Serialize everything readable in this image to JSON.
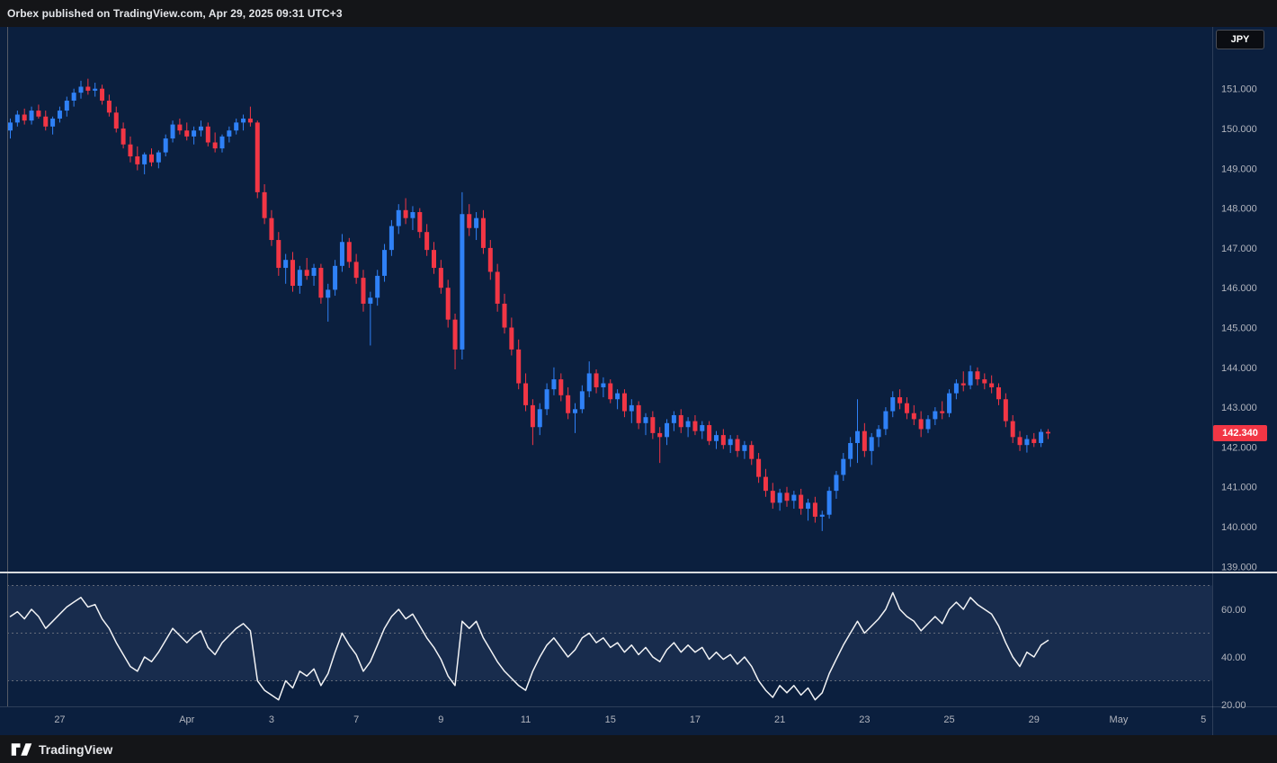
{
  "header": {
    "published_line": "Orbex published on TradingView.com, Apr 29, 2025 09:31 UTC+3"
  },
  "symbol_badge": "JPY",
  "price_label": {
    "value": "142.340",
    "color": "#f23645"
  },
  "footer": {
    "brand": "TradingView"
  },
  "chart_data": {
    "type": "candlestick",
    "symbol": "JPY",
    "interval_note": "4h candles with RSI sub-pane",
    "ohlc_order": [
      "open",
      "high",
      "low",
      "close"
    ],
    "last_price": 142.34,
    "price_axis": {
      "ticks": [
        151,
        150,
        149,
        148,
        147,
        146,
        145,
        144,
        143,
        142,
        141,
        140,
        139
      ],
      "decimals": 3
    },
    "rsi_axis": {
      "ticks": [
        60,
        40,
        20
      ],
      "levels": [
        70,
        50,
        30
      ],
      "decimals": 2
    },
    "time_labels": [
      {
        "label": "27",
        "i": 7
      },
      {
        "label": "Apr",
        "i": 25
      },
      {
        "label": "3",
        "i": 37
      },
      {
        "label": "7",
        "i": 49
      },
      {
        "label": "9",
        "i": 61
      },
      {
        "label": "11",
        "i": 73
      },
      {
        "label": "15",
        "i": 85
      },
      {
        "label": "17",
        "i": 97
      },
      {
        "label": "21",
        "i": 109
      },
      {
        "label": "23",
        "i": 121
      },
      {
        "label": "25",
        "i": 133
      },
      {
        "label": "29",
        "i": 145
      },
      {
        "label": "May",
        "i": 157
      },
      {
        "label": "5",
        "i": 169
      }
    ],
    "colors": {
      "background": "#0b1f3e",
      "panel": "#141518",
      "up": "#2f81f7",
      "down": "#f23645",
      "rsi_line": "#f2f3f5",
      "rsi_band": "rgba(148,170,220,0.10)",
      "dashed": "#787b86",
      "separator": "#d8dade",
      "axis_text": "#b2b5be",
      "border": "#565b66"
    },
    "candles": [
      [
        149.95,
        150.25,
        149.75,
        150.15
      ],
      [
        150.15,
        150.45,
        150.05,
        150.35
      ],
      [
        150.35,
        150.5,
        150.1,
        150.2
      ],
      [
        150.2,
        150.55,
        150.1,
        150.45
      ],
      [
        150.45,
        150.6,
        150.25,
        150.3
      ],
      [
        150.3,
        150.45,
        149.95,
        150.05
      ],
      [
        150.05,
        150.3,
        149.85,
        150.25
      ],
      [
        150.25,
        150.55,
        150.15,
        150.45
      ],
      [
        150.45,
        150.8,
        150.3,
        150.7
      ],
      [
        150.7,
        151.0,
        150.55,
        150.9
      ],
      [
        150.9,
        151.2,
        150.75,
        151.05
      ],
      [
        151.05,
        151.25,
        150.85,
        150.95
      ],
      [
        150.95,
        151.15,
        150.8,
        151.0
      ],
      [
        151.0,
        151.1,
        150.6,
        150.7
      ],
      [
        150.7,
        150.85,
        150.3,
        150.4
      ],
      [
        150.4,
        150.55,
        149.9,
        150.0
      ],
      [
        150.0,
        150.15,
        149.5,
        149.6
      ],
      [
        149.6,
        149.8,
        149.15,
        149.3
      ],
      [
        149.3,
        149.55,
        148.95,
        149.1
      ],
      [
        149.1,
        149.4,
        148.85,
        149.35
      ],
      [
        149.35,
        149.5,
        149.05,
        149.15
      ],
      [
        149.15,
        149.45,
        149.0,
        149.4
      ],
      [
        149.4,
        149.85,
        149.3,
        149.75
      ],
      [
        149.75,
        150.2,
        149.65,
        150.1
      ],
      [
        150.1,
        150.25,
        149.85,
        149.95
      ],
      [
        149.95,
        150.15,
        149.7,
        149.8
      ],
      [
        149.8,
        150.05,
        149.6,
        149.95
      ],
      [
        149.95,
        150.2,
        149.8,
        150.05
      ],
      [
        150.05,
        150.15,
        149.55,
        149.65
      ],
      [
        149.65,
        149.9,
        149.4,
        149.5
      ],
      [
        149.5,
        149.85,
        149.4,
        149.8
      ],
      [
        149.8,
        150.05,
        149.65,
        149.95
      ],
      [
        149.95,
        150.25,
        149.85,
        150.15
      ],
      [
        150.15,
        150.35,
        149.95,
        150.25
      ],
      [
        150.25,
        150.55,
        150.05,
        150.15
      ],
      [
        150.15,
        150.2,
        148.25,
        148.4
      ],
      [
        148.4,
        148.6,
        147.6,
        147.75
      ],
      [
        147.75,
        147.95,
        147.05,
        147.2
      ],
      [
        147.2,
        147.4,
        146.3,
        146.5
      ],
      [
        146.5,
        146.85,
        146.1,
        146.7
      ],
      [
        146.7,
        146.9,
        145.9,
        146.05
      ],
      [
        146.05,
        146.55,
        145.85,
        146.45
      ],
      [
        146.45,
        146.75,
        146.2,
        146.3
      ],
      [
        146.3,
        146.6,
        146.05,
        146.5
      ],
      [
        146.5,
        146.6,
        145.6,
        145.75
      ],
      [
        145.75,
        146.1,
        145.15,
        145.95
      ],
      [
        145.95,
        146.7,
        145.8,
        146.55
      ],
      [
        146.55,
        147.35,
        146.4,
        147.15
      ],
      [
        147.15,
        147.25,
        146.5,
        146.65
      ],
      [
        146.65,
        146.85,
        146.1,
        146.25
      ],
      [
        146.25,
        146.45,
        145.4,
        145.6
      ],
      [
        145.6,
        145.9,
        144.55,
        145.75
      ],
      [
        145.75,
        146.45,
        145.55,
        146.3
      ],
      [
        146.3,
        147.1,
        146.15,
        146.95
      ],
      [
        146.95,
        147.7,
        146.8,
        147.55
      ],
      [
        147.55,
        148.1,
        147.35,
        147.95
      ],
      [
        147.95,
        148.25,
        147.6,
        147.75
      ],
      [
        147.75,
        148.05,
        147.45,
        147.9
      ],
      [
        147.9,
        148.0,
        147.25,
        147.4
      ],
      [
        147.4,
        147.6,
        146.8,
        146.95
      ],
      [
        146.95,
        147.15,
        146.35,
        146.5
      ],
      [
        146.5,
        146.7,
        145.85,
        146.0
      ],
      [
        146.0,
        146.2,
        145.0,
        145.2
      ],
      [
        145.2,
        145.35,
        143.95,
        144.45
      ],
      [
        144.45,
        148.4,
        144.2,
        147.85
      ],
      [
        147.85,
        148.1,
        147.3,
        147.5
      ],
      [
        147.5,
        147.9,
        147.2,
        147.75
      ],
      [
        147.75,
        147.95,
        146.85,
        147.0
      ],
      [
        147.0,
        147.2,
        146.2,
        146.4
      ],
      [
        146.4,
        146.6,
        145.4,
        145.6
      ],
      [
        145.6,
        145.85,
        144.85,
        145.0
      ],
      [
        145.0,
        145.25,
        144.3,
        144.45
      ],
      [
        144.45,
        144.7,
        143.45,
        143.6
      ],
      [
        143.6,
        143.85,
        142.9,
        143.05
      ],
      [
        143.05,
        143.2,
        142.05,
        142.5
      ],
      [
        142.5,
        143.1,
        142.3,
        142.95
      ],
      [
        142.95,
        143.6,
        142.8,
        143.45
      ],
      [
        143.45,
        144.0,
        143.3,
        143.7
      ],
      [
        143.7,
        143.85,
        143.15,
        143.3
      ],
      [
        143.3,
        143.5,
        142.7,
        142.85
      ],
      [
        142.85,
        143.1,
        142.35,
        142.95
      ],
      [
        142.95,
        143.55,
        142.85,
        143.4
      ],
      [
        143.4,
        144.15,
        143.25,
        143.85
      ],
      [
        143.85,
        143.95,
        143.35,
        143.5
      ],
      [
        143.5,
        143.75,
        143.25,
        143.6
      ],
      [
        143.6,
        143.7,
        143.1,
        143.2
      ],
      [
        143.2,
        143.45,
        142.95,
        143.35
      ],
      [
        143.35,
        143.45,
        142.75,
        142.9
      ],
      [
        142.9,
        143.2,
        142.6,
        143.05
      ],
      [
        143.05,
        143.15,
        142.45,
        142.6
      ],
      [
        142.6,
        142.85,
        142.3,
        142.75
      ],
      [
        142.75,
        142.9,
        142.2,
        142.35
      ],
      [
        142.35,
        142.5,
        141.6,
        142.25
      ],
      [
        142.25,
        142.7,
        142.05,
        142.6
      ],
      [
        142.6,
        142.9,
        142.4,
        142.8
      ],
      [
        142.8,
        142.95,
        142.35,
        142.5
      ],
      [
        142.5,
        142.75,
        142.25,
        142.65
      ],
      [
        142.65,
        142.8,
        142.3,
        142.4
      ],
      [
        142.4,
        142.65,
        142.2,
        142.55
      ],
      [
        142.55,
        142.65,
        142.05,
        142.15
      ],
      [
        142.15,
        142.4,
        141.95,
        142.3
      ],
      [
        142.3,
        142.45,
        141.95,
        142.05
      ],
      [
        142.05,
        142.3,
        141.85,
        142.2
      ],
      [
        142.2,
        142.3,
        141.75,
        141.9
      ],
      [
        141.9,
        142.15,
        141.7,
        142.05
      ],
      [
        142.05,
        142.15,
        141.55,
        141.7
      ],
      [
        141.7,
        141.85,
        141.1,
        141.25
      ],
      [
        141.25,
        141.45,
        140.75,
        140.9
      ],
      [
        140.9,
        141.1,
        140.45,
        140.6
      ],
      [
        140.6,
        140.95,
        140.4,
        140.85
      ],
      [
        140.85,
        141.0,
        140.5,
        140.65
      ],
      [
        140.65,
        140.9,
        140.45,
        140.8
      ],
      [
        140.8,
        140.95,
        140.3,
        140.45
      ],
      [
        140.45,
        140.7,
        140.15,
        140.6
      ],
      [
        140.6,
        140.75,
        140.1,
        140.25
      ],
      [
        140.25,
        140.4,
        139.89,
        140.3
      ],
      [
        140.3,
        141.0,
        140.2,
        140.9
      ],
      [
        140.9,
        141.4,
        140.7,
        141.3
      ],
      [
        141.3,
        141.85,
        141.15,
        141.7
      ],
      [
        141.7,
        142.25,
        141.5,
        142.1
      ],
      [
        142.1,
        143.2,
        141.6,
        142.4
      ],
      [
        142.4,
        142.6,
        141.75,
        141.9
      ],
      [
        141.9,
        142.35,
        141.55,
        142.25
      ],
      [
        142.25,
        142.55,
        142.0,
        142.45
      ],
      [
        142.45,
        143.0,
        142.3,
        142.9
      ],
      [
        142.9,
        143.4,
        142.75,
        143.25
      ],
      [
        143.25,
        143.45,
        142.95,
        143.1
      ],
      [
        143.1,
        143.25,
        142.7,
        142.85
      ],
      [
        142.85,
        143.05,
        142.55,
        142.7
      ],
      [
        142.7,
        142.9,
        142.25,
        142.45
      ],
      [
        142.45,
        142.8,
        142.35,
        142.7
      ],
      [
        142.7,
        143.0,
        142.55,
        142.9
      ],
      [
        142.9,
        143.15,
        142.7,
        142.85
      ],
      [
        142.85,
        143.45,
        142.75,
        143.35
      ],
      [
        143.35,
        143.7,
        143.2,
        143.6
      ],
      [
        143.6,
        143.9,
        143.4,
        143.55
      ],
      [
        143.55,
        144.05,
        143.45,
        143.9
      ],
      [
        143.9,
        144.0,
        143.55,
        143.7
      ],
      [
        143.7,
        143.85,
        143.45,
        143.6
      ],
      [
        143.6,
        143.8,
        143.35,
        143.5
      ],
      [
        143.5,
        143.6,
        143.05,
        143.2
      ],
      [
        143.2,
        143.35,
        142.5,
        142.65
      ],
      [
        142.65,
        142.8,
        142.1,
        142.25
      ],
      [
        142.25,
        142.4,
        141.9,
        142.05
      ],
      [
        142.05,
        142.3,
        141.86,
        142.2
      ],
      [
        142.2,
        142.35,
        142.0,
        142.1
      ],
      [
        142.1,
        142.45,
        142.0,
        142.38
      ],
      [
        142.38,
        142.45,
        142.2,
        142.34
      ]
    ],
    "rsi": [
      57,
      59,
      56,
      60,
      57,
      52,
      55,
      58,
      61,
      63,
      65,
      61,
      62,
      56,
      52,
      46,
      41,
      36,
      34,
      40,
      38,
      42,
      47,
      52,
      49,
      46,
      49,
      51,
      44,
      41,
      46,
      49,
      52,
      54,
      51,
      30,
      26,
      24,
      22,
      30,
      27,
      34,
      32,
      35,
      28,
      33,
      42,
      50,
      45,
      41,
      34,
      38,
      45,
      52,
      57,
      60,
      56,
      58,
      53,
      48,
      44,
      39,
      32,
      28,
      55,
      52,
      55,
      48,
      43,
      38,
      34,
      31,
      28,
      26,
      34,
      40,
      45,
      48,
      44,
      40,
      43,
      48,
      50,
      46,
      48,
      44,
      46,
      42,
      45,
      41,
      44,
      40,
      38,
      43,
      46,
      42,
      45,
      42,
      44,
      39,
      42,
      39,
      41,
      37,
      40,
      36,
      30,
      26,
      23,
      28,
      25,
      28,
      24,
      27,
      22,
      25,
      33,
      39,
      45,
      50,
      55,
      50,
      53,
      56,
      60,
      67,
      60,
      57,
      55,
      51,
      54,
      57,
      54,
      60,
      63,
      60,
      65,
      62,
      60,
      58,
      53,
      46,
      40,
      36,
      42,
      40,
      45,
      47
    ]
  }
}
